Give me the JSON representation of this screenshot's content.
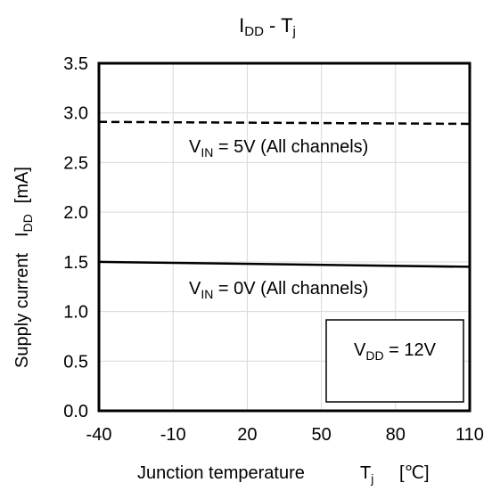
{
  "chart_data": {
    "type": "line",
    "title": {
      "main": "I",
      "sub": "DD",
      "rest": " - T",
      "sub2": "j"
    },
    "xlabel": {
      "main": "Junction temperature",
      "sym": "T",
      "sub": "j",
      "unit": "[℃]"
    },
    "ylabel": {
      "main": "Supply current",
      "sym": "I",
      "sub": "DD",
      "unit": "[mA]"
    },
    "xlim": [
      -40,
      110
    ],
    "ylim": [
      0,
      3.5
    ],
    "x_ticks": [
      "-40",
      "-10",
      "20",
      "50",
      "80",
      "110"
    ],
    "y_ticks": [
      "0.0",
      "0.5",
      "1.0",
      "1.5",
      "2.0",
      "2.5",
      "3.0",
      "3.5"
    ],
    "grid": true,
    "series": [
      {
        "name": "VIN = 5V (All channels)",
        "style": "dashed",
        "x": [
          -40,
          110
        ],
        "y": [
          2.91,
          2.89
        ]
      },
      {
        "name": "VIN = 0V (All channels)",
        "style": "solid",
        "x": [
          -40,
          110
        ],
        "y": [
          1.5,
          1.45
        ]
      }
    ],
    "annotations": {
      "vin5": {
        "pre": "V",
        "sub": "IN",
        "post": " = 5V (All channels)"
      },
      "vin0": {
        "pre": "V",
        "sub": "IN",
        "post": " = 0V (All channels)"
      },
      "vdd": {
        "pre": "V",
        "sub": "DD",
        "post": " = 12V"
      }
    }
  }
}
